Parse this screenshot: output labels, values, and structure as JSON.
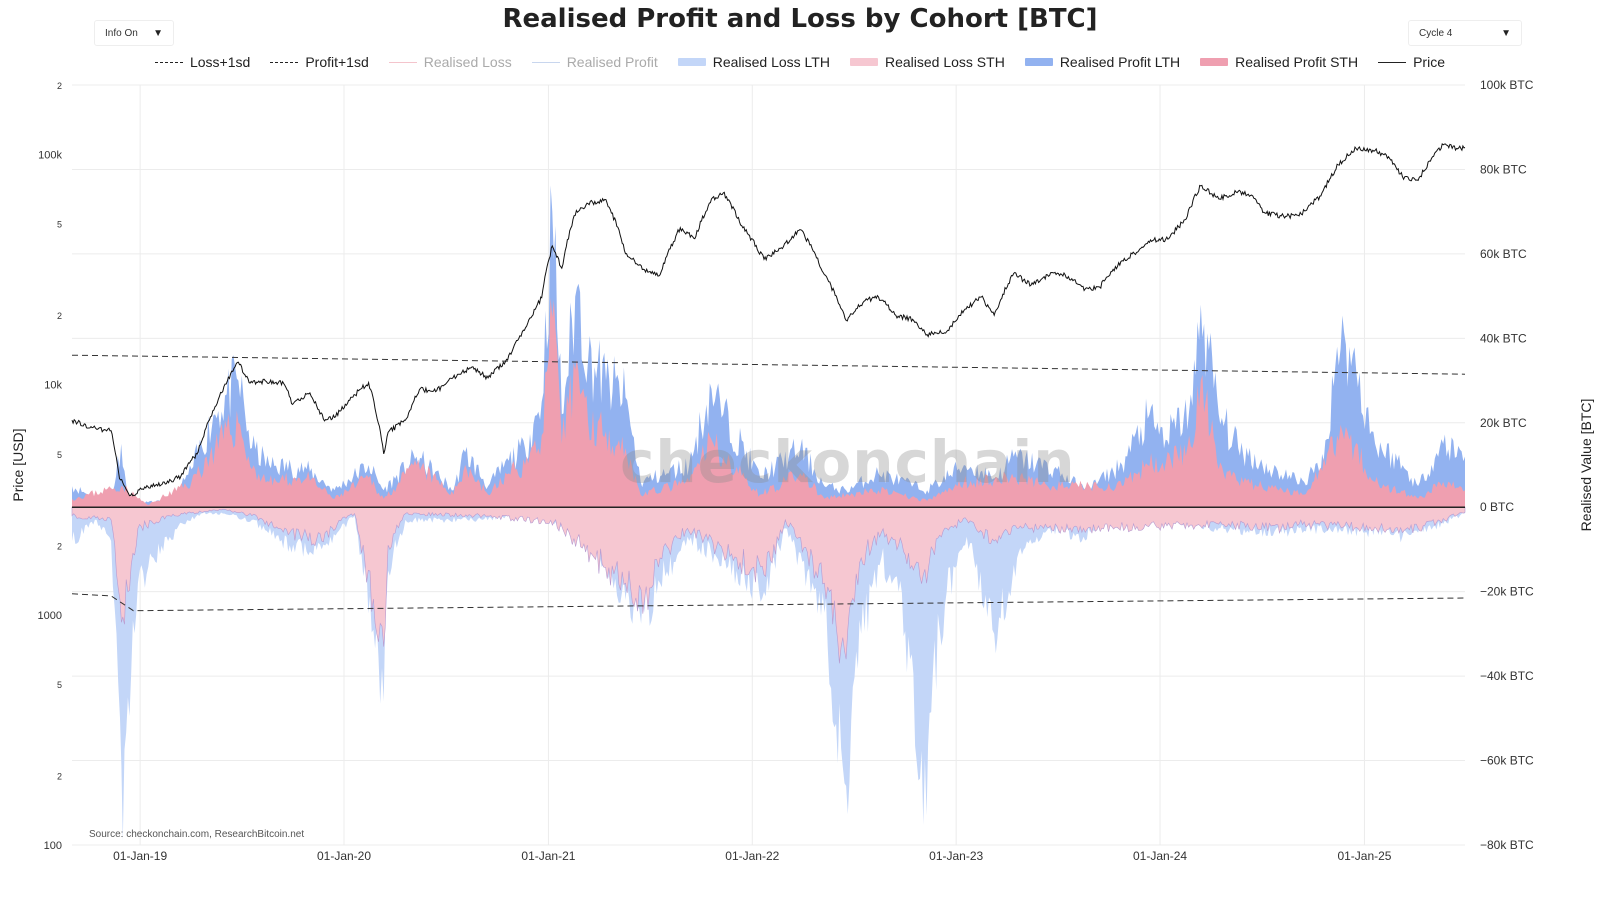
{
  "title": "Realised Profit and Loss by Cohort [BTC]",
  "controls": {
    "info_label": "Info On",
    "cycle_label": "Cycle 4",
    "arrow_glyph": "▼"
  },
  "legend": [
    {
      "label": "Loss+1sd",
      "style": "dash",
      "color": "#222222",
      "dim": false
    },
    {
      "label": "Profit+1sd",
      "style": "dash",
      "color": "#222222",
      "dim": false
    },
    {
      "label": "Realised Loss",
      "style": "thinline",
      "color": "#f4c4cc",
      "dim": true
    },
    {
      "label": "Realised Profit",
      "style": "thinline",
      "color": "#c8d6ee",
      "dim": true
    },
    {
      "label": "Realised Loss LTH",
      "style": "fill",
      "color": "#c3d6f8",
      "dim": false
    },
    {
      "label": "Realised Loss STH",
      "style": "fill",
      "color": "#f6c7d1",
      "dim": false
    },
    {
      "label": "Realised Profit LTH",
      "style": "fill",
      "color": "#92b2f0",
      "dim": false
    },
    {
      "label": "Realised Profit STH",
      "style": "fill",
      "color": "#ef9fb0",
      "dim": false
    },
    {
      "label": "Price",
      "style": "line",
      "color": "#222222",
      "dim": false
    }
  ],
  "axes": {
    "y_left_title": "Price [USD]",
    "y_right_title": "Realised Value [BTC]",
    "y_left_ticks": [
      "2",
      "100k",
      "5",
      "2",
      "10k",
      "5",
      "2",
      "1000",
      "5",
      "2",
      "100"
    ],
    "y_right_ticks": [
      "100k BTC",
      "80k BTC",
      "60k BTC",
      "40k BTC",
      "20k BTC",
      "0 BTC",
      "−20k BTC",
      "−40k BTC",
      "−60k BTC",
      "−80k BTC"
    ],
    "x_ticks": [
      "01-Jan-19",
      "01-Jan-20",
      "01-Jan-21",
      "01-Jan-22",
      "01-Jan-23",
      "01-Jan-24",
      "01-Jan-25"
    ]
  },
  "source": "Source: checkonchain.com, ResearchBitcoin.net",
  "watermark": "checkonchain",
  "colors": {
    "profit_lth": "#92b2f0",
    "profit_sth": "#ef9fb0",
    "loss_lth": "#c3d6f8",
    "loss_sth": "#f6c7d1",
    "loss_sth_edge": "#b79ad0",
    "price": "#111111",
    "zero_line": "#222222",
    "grid": "#ececec"
  },
  "chart_data": {
    "type": "area",
    "x_range": [
      "2018-09-01",
      "2025-06-30"
    ],
    "y_left": {
      "scale": "log",
      "range": [
        100,
        200000
      ],
      "unit": "USD"
    },
    "y_right": {
      "scale": "linear",
      "range": [
        -80000,
        100000
      ],
      "unit": "BTC"
    },
    "grid": true,
    "legend_position": "top",
    "price": [
      [
        "2018-09-01",
        7000
      ],
      [
        "2018-10-15",
        6400
      ],
      [
        "2018-11-10",
        6300
      ],
      [
        "2018-11-25",
        3900
      ],
      [
        "2018-12-15",
        3300
      ],
      [
        "2019-01-15",
        3600
      ],
      [
        "2019-02-15",
        3700
      ],
      [
        "2019-03-15",
        4000
      ],
      [
        "2019-04-15",
        5100
      ],
      [
        "2019-05-15",
        8000
      ],
      [
        "2019-06-26",
        12500
      ],
      [
        "2019-07-15",
        10200
      ],
      [
        "2019-08-15",
        10300
      ],
      [
        "2019-09-15",
        10100
      ],
      [
        "2019-10-01",
        8200
      ],
      [
        "2019-11-01",
        9200
      ],
      [
        "2019-11-25",
        7100
      ],
      [
        "2019-12-15",
        7200
      ],
      [
        "2020-01-15",
        8800
      ],
      [
        "2020-02-14",
        10200
      ],
      [
        "2020-03-12",
        5000
      ],
      [
        "2020-03-20",
        6200
      ],
      [
        "2020-04-20",
        7000
      ],
      [
        "2020-05-15",
        9500
      ],
      [
        "2020-06-15",
        9400
      ],
      [
        "2020-07-30",
        11300
      ],
      [
        "2020-08-15",
        11800
      ],
      [
        "2020-09-15",
        10700
      ],
      [
        "2020-10-20",
        12800
      ],
      [
        "2020-11-25",
        18500
      ],
      [
        "2020-12-20",
        23800
      ],
      [
        "2021-01-08",
        40000
      ],
      [
        "2021-01-25",
        32000
      ],
      [
        "2021-02-20",
        57000
      ],
      [
        "2021-03-13",
        61000
      ],
      [
        "2021-04-14",
        63500
      ],
      [
        "2021-05-19",
        37000
      ],
      [
        "2021-06-22",
        31500
      ],
      [
        "2021-07-20",
        30000
      ],
      [
        "2021-08-25",
        48000
      ],
      [
        "2021-09-20",
        43000
      ],
      [
        "2021-10-20",
        64000
      ],
      [
        "2021-11-10",
        68000
      ],
      [
        "2021-12-15",
        48000
      ],
      [
        "2022-01-22",
        35000
      ],
      [
        "2022-02-20",
        39000
      ],
      [
        "2022-03-29",
        47000
      ],
      [
        "2022-05-10",
        30000
      ],
      [
        "2022-06-18",
        19000
      ],
      [
        "2022-07-20",
        23000
      ],
      [
        "2022-08-15",
        24000
      ],
      [
        "2022-09-15",
        20000
      ],
      [
        "2022-10-15",
        19200
      ],
      [
        "2022-11-10",
        16500
      ],
      [
        "2022-12-15",
        17000
      ],
      [
        "2023-01-15",
        21000
      ],
      [
        "2023-02-15",
        24000
      ],
      [
        "2023-03-10",
        20000
      ],
      [
        "2023-04-14",
        30400
      ],
      [
        "2023-05-15",
        27000
      ],
      [
        "2023-06-25",
        30500
      ],
      [
        "2023-07-15",
        30000
      ],
      [
        "2023-08-20",
        26000
      ],
      [
        "2023-09-15",
        26500
      ],
      [
        "2023-10-25",
        34500
      ],
      [
        "2023-11-20",
        37500
      ],
      [
        "2023-12-15",
        42500
      ],
      [
        "2024-01-15",
        42800
      ],
      [
        "2024-02-15",
        52000
      ],
      [
        "2024-03-14",
        73000
      ],
      [
        "2024-04-15",
        64000
      ],
      [
        "2024-05-20",
        69000
      ],
      [
        "2024-06-15",
        66000
      ],
      [
        "2024-07-05",
        56000
      ],
      [
        "2024-08-05",
        54000
      ],
      [
        "2024-09-06",
        54000
      ],
      [
        "2024-10-15",
        66000
      ],
      [
        "2024-11-15",
        90000
      ],
      [
        "2024-12-17",
        106000
      ],
      [
        "2025-01-20",
        104000
      ],
      [
        "2025-02-15",
        96000
      ],
      [
        "2025-03-10",
        80000
      ],
      [
        "2025-04-07",
        77000
      ],
      [
        "2025-05-01",
        96000
      ],
      [
        "2025-05-22",
        110000
      ],
      [
        "2025-06-15",
        106000
      ],
      [
        "2025-06-30",
        107000
      ]
    ],
    "realised_profit_total": [
      [
        "2018-09-01",
        5000
      ],
      [
        "2018-10-15",
        2000
      ],
      [
        "2018-11-10",
        1500
      ],
      [
        "2018-11-28",
        15000
      ],
      [
        "2018-12-10",
        1500
      ],
      [
        "2019-01-15",
        1200
      ],
      [
        "2019-03-01",
        1500
      ],
      [
        "2019-04-03",
        9000
      ],
      [
        "2019-05-15",
        22000
      ],
      [
        "2019-06-26",
        30000
      ],
      [
        "2019-07-20",
        14000
      ],
      [
        "2019-08-20",
        10000
      ],
      [
        "2019-10-26",
        9000
      ],
      [
        "2019-12-15",
        4000
      ],
      [
        "2020-02-14",
        10000
      ],
      [
        "2020-03-12",
        4000
      ],
      [
        "2020-05-10",
        12000
      ],
      [
        "2020-07-15",
        4000
      ],
      [
        "2020-08-05",
        13000
      ],
      [
        "2020-09-15",
        5000
      ],
      [
        "2020-10-22",
        11000
      ],
      [
        "2020-11-20",
        14000
      ],
      [
        "2020-12-20",
        25000
      ],
      [
        "2021-01-08",
        70000
      ],
      [
        "2021-01-25",
        22000
      ],
      [
        "2021-02-21",
        52000
      ],
      [
        "2021-03-13",
        35000
      ],
      [
        "2021-04-14",
        30000
      ],
      [
        "2021-05-19",
        26000
      ],
      [
        "2021-06-15",
        6000
      ],
      [
        "2021-08-01",
        8000
      ],
      [
        "2021-09-10",
        10000
      ],
      [
        "2021-10-20",
        28000
      ],
      [
        "2021-11-10",
        22000
      ],
      [
        "2022-01-15",
        7000
      ],
      [
        "2022-03-28",
        14000
      ],
      [
        "2022-05-10",
        5000
      ],
      [
        "2022-06-18",
        4000
      ],
      [
        "2022-08-15",
        8000
      ],
      [
        "2022-11-10",
        4000
      ],
      [
        "2023-01-15",
        10000
      ],
      [
        "2023-03-15",
        7000
      ],
      [
        "2023-04-14",
        12000
      ],
      [
        "2023-06-25",
        9000
      ],
      [
        "2023-08-20",
        4000
      ],
      [
        "2023-10-25",
        10000
      ],
      [
        "2023-12-10",
        21000
      ],
      [
        "2024-01-11",
        16000
      ],
      [
        "2024-02-28",
        24000
      ],
      [
        "2024-03-14",
        48000
      ],
      [
        "2024-04-15",
        22000
      ],
      [
        "2024-05-20",
        14000
      ],
      [
        "2024-07-15",
        9000
      ],
      [
        "2024-09-15",
        6000
      ],
      [
        "2024-10-20",
        11000
      ],
      [
        "2024-11-13",
        38000
      ],
      [
        "2024-12-05",
        38000
      ],
      [
        "2025-01-20",
        15000
      ],
      [
        "2025-03-01",
        11000
      ],
      [
        "2025-04-07",
        5000
      ],
      [
        "2025-05-22",
        15000
      ],
      [
        "2025-06-30",
        12000
      ]
    ],
    "realised_profit_sth": [
      [
        "2018-09-01",
        2000
      ],
      [
        "2018-11-28",
        5000
      ],
      [
        "2019-01-15",
        500
      ],
      [
        "2019-04-03",
        6000
      ],
      [
        "2019-05-15",
        14000
      ],
      [
        "2019-06-26",
        20000
      ],
      [
        "2019-07-20",
        9000
      ],
      [
        "2019-08-20",
        6000
      ],
      [
        "2019-10-26",
        7000
      ],
      [
        "2019-12-15",
        2000
      ],
      [
        "2020-02-14",
        7000
      ],
      [
        "2020-03-12",
        2000
      ],
      [
        "2020-05-10",
        10000
      ],
      [
        "2020-07-15",
        3000
      ],
      [
        "2020-08-05",
        10000
      ],
      [
        "2020-09-15",
        3000
      ],
      [
        "2020-10-22",
        8000
      ],
      [
        "2020-11-20",
        10000
      ],
      [
        "2020-12-20",
        17000
      ],
      [
        "2021-01-08",
        45000
      ],
      [
        "2021-01-25",
        15000
      ],
      [
        "2021-02-21",
        35000
      ],
      [
        "2021-03-13",
        20000
      ],
      [
        "2021-04-14",
        18000
      ],
      [
        "2021-05-19",
        14000
      ],
      [
        "2021-06-15",
        3000
      ],
      [
        "2021-09-10",
        6000
      ],
      [
        "2021-10-20",
        16000
      ],
      [
        "2021-11-10",
        12000
      ],
      [
        "2022-01-15",
        3000
      ],
      [
        "2022-03-28",
        8000
      ],
      [
        "2022-05-10",
        2000
      ],
      [
        "2022-08-15",
        4000
      ],
      [
        "2022-11-10",
        1500
      ],
      [
        "2023-01-15",
        6000
      ],
      [
        "2023-04-14",
        7000
      ],
      [
        "2023-06-25",
        5000
      ],
      [
        "2023-10-25",
        5000
      ],
      [
        "2023-12-10",
        10000
      ],
      [
        "2024-02-28",
        14000
      ],
      [
        "2024-03-14",
        30000
      ],
      [
        "2024-04-15",
        9000
      ],
      [
        "2024-05-20",
        6000
      ],
      [
        "2024-09-15",
        3000
      ],
      [
        "2024-11-13",
        17000
      ],
      [
        "2024-12-05",
        16000
      ],
      [
        "2025-01-20",
        6000
      ],
      [
        "2025-04-07",
        2000
      ],
      [
        "2025-05-22",
        6000
      ],
      [
        "2025-06-30",
        4000
      ]
    ],
    "realised_loss_total": [
      [
        "2018-09-01",
        -8000
      ],
      [
        "2018-10-15",
        -3000
      ],
      [
        "2018-11-10",
        -8000
      ],
      [
        "2018-11-26",
        -50000
      ],
      [
        "2018-12-01",
        -79000
      ],
      [
        "2018-12-10",
        -45000
      ],
      [
        "2018-12-28",
        -18000
      ],
      [
        "2019-01-25",
        -12000
      ],
      [
        "2019-02-20",
        -8000
      ],
      [
        "2019-03-20",
        -4000
      ],
      [
        "2019-04-20",
        -1500
      ],
      [
        "2019-06-01",
        -1500
      ],
      [
        "2019-07-20",
        -3000
      ],
      [
        "2019-09-26",
        -9000
      ],
      [
        "2019-11-22",
        -10000
      ],
      [
        "2019-12-20",
        -6000
      ],
      [
        "2020-01-20",
        -2000
      ],
      [
        "2020-03-12",
        -46000
      ],
      [
        "2020-03-20",
        -15000
      ],
      [
        "2020-04-20",
        -3000
      ],
      [
        "2020-09-05",
        -3000
      ],
      [
        "2020-12-01",
        -1000
      ],
      [
        "2021-01-11",
        -4000
      ],
      [
        "2021-02-26",
        -3000
      ],
      [
        "2021-05-19",
        -22000
      ],
      [
        "2021-06-22",
        -25000
      ],
      [
        "2021-07-20",
        -18000
      ],
      [
        "2021-09-07",
        -7000
      ],
      [
        "2021-12-04",
        -15000
      ],
      [
        "2022-01-22",
        -20000
      ],
      [
        "2022-03-01",
        -5000
      ],
      [
        "2022-05-10",
        -25000
      ],
      [
        "2022-06-18",
        -66000
      ],
      [
        "2022-07-15",
        -30000
      ],
      [
        "2022-08-20",
        -12000
      ],
      [
        "2022-09-20",
        -20000
      ],
      [
        "2022-11-09",
        -73000
      ],
      [
        "2022-11-20",
        -40000
      ],
      [
        "2022-12-15",
        -20000
      ],
      [
        "2023-01-20",
        -7000
      ],
      [
        "2023-03-10",
        -30000
      ],
      [
        "2023-04-20",
        -12000
      ],
      [
        "2023-06-15",
        -5000
      ],
      [
        "2023-08-17",
        -7000
      ],
      [
        "2023-10-01",
        -2000
      ],
      [
        "2024-01-22",
        -3000
      ],
      [
        "2024-04-15",
        -5000
      ],
      [
        "2024-08-05",
        -6000
      ],
      [
        "2024-09-06",
        -5000
      ],
      [
        "2025-02-25",
        -6000
      ],
      [
        "2025-03-10",
        -7000
      ],
      [
        "2025-04-07",
        -6000
      ],
      [
        "2025-06-30",
        -1500
      ]
    ],
    "realised_loss_sth": [
      [
        "2018-09-01",
        -2000
      ],
      [
        "2018-11-10",
        -3000
      ],
      [
        "2018-11-26",
        -22000
      ],
      [
        "2018-12-01",
        -26000
      ],
      [
        "2018-12-10",
        -20000
      ],
      [
        "2018-12-28",
        -5000
      ],
      [
        "2019-02-20",
        -2000
      ],
      [
        "2019-06-01",
        -500
      ],
      [
        "2019-07-20",
        -2000
      ],
      [
        "2019-09-26",
        -6000
      ],
      [
        "2019-11-22",
        -8000
      ],
      [
        "2019-12-20",
        -4000
      ],
      [
        "2020-01-20",
        -1500
      ],
      [
        "2020-03-12",
        -33000
      ],
      [
        "2020-03-20",
        -9000
      ],
      [
        "2020-04-20",
        -1500
      ],
      [
        "2020-09-05",
        -2000
      ],
      [
        "2021-01-11",
        -3500
      ],
      [
        "2021-05-19",
        -18000
      ],
      [
        "2021-06-22",
        -22000
      ],
      [
        "2021-07-20",
        -12000
      ],
      [
        "2021-09-07",
        -5000
      ],
      [
        "2021-12-04",
        -12000
      ],
      [
        "2022-01-22",
        -16000
      ],
      [
        "2022-03-01",
        -3000
      ],
      [
        "2022-05-10",
        -18000
      ],
      [
        "2022-06-18",
        -36000
      ],
      [
        "2022-07-15",
        -12000
      ],
      [
        "2022-08-20",
        -6000
      ],
      [
        "2022-09-20",
        -9000
      ],
      [
        "2022-11-09",
        -18000
      ],
      [
        "2022-11-20",
        -10000
      ],
      [
        "2022-12-15",
        -5000
      ],
      [
        "2023-01-20",
        -3000
      ],
      [
        "2023-03-10",
        -8000
      ],
      [
        "2023-04-20",
        -5000
      ],
      [
        "2023-08-17",
        -5000
      ],
      [
        "2024-04-15",
        -4000
      ],
      [
        "2024-08-05",
        -5000
      ],
      [
        "2024-09-06",
        -4000
      ],
      [
        "2025-02-25",
        -5000
      ],
      [
        "2025-03-10",
        -6000
      ],
      [
        "2025-04-07",
        -5000
      ],
      [
        "2025-06-30",
        -1200
      ]
    ],
    "profit_plus_1sd": [
      [
        "2018-09-01",
        36000
      ],
      [
        "2025-06-30",
        31500
      ]
    ],
    "loss_plus_1sd": [
      [
        "2018-09-01",
        -20500
      ],
      [
        "2018-11-10",
        -21000
      ],
      [
        "2018-12-20",
        -24500
      ],
      [
        "2025-06-30",
        -21500
      ]
    ]
  }
}
